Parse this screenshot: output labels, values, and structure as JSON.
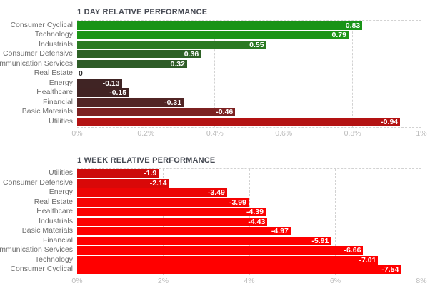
{
  "styles": {
    "background": "#ffffff",
    "title_color": "#474b54",
    "category_label_color": "#6e6e6e",
    "tick_label_color": "#bcbcbc",
    "grid_color": "#d2d2d2",
    "bar_value_label_color": "#ffffff",
    "zero_value_label_color": "#2e2e2e"
  },
  "chart_data": [
    {
      "type": "bar",
      "orientation": "horizontal",
      "title": "1 DAY RELATIVE PERFORMANCE",
      "categories": [
        "Consumer Cyclical",
        "Technology",
        "Industrials",
        "Consumer Defensive",
        "Communication Services",
        "Real Estate",
        "Energy",
        "Healthcare",
        "Financial",
        "Basic Materials",
        "Utilities"
      ],
      "values": [
        0.83,
        0.79,
        0.55,
        0.36,
        0.32,
        0,
        -0.13,
        -0.15,
        -0.31,
        -0.46,
        -0.94
      ],
      "value_labels": [
        "0.83",
        "0.79",
        "0.55",
        "0.36",
        "0.32",
        "0",
        "-0.13",
        "-0.15",
        "-0.31",
        "-0.46",
        "-0.94"
      ],
      "bar_colors": [
        "#199317",
        "#1c9516",
        "#2a7a22",
        "#2d6126",
        "#2e5c27",
        null,
        "#402424",
        "#412323",
        "#522525",
        "#7d2121",
        "#b31212"
      ],
      "bar_length_basis": "absolute value of performance percent",
      "axis": {
        "x_min": 0,
        "x_max": 1,
        "tick_positions_percent": [
          0,
          20,
          40,
          60,
          80,
          100
        ],
        "tick_labels": [
          "0%",
          "0.2%",
          "0.4%",
          "0.6%",
          "0.8%",
          "1%"
        ]
      },
      "grid": "dashed vertical gridlines; dashed top, right and bottom plot border",
      "legend": "none"
    },
    {
      "type": "bar",
      "orientation": "horizontal",
      "title": "1 WEEK RELATIVE PERFORMANCE",
      "categories": [
        "Utilities",
        "Consumer Defensive",
        "Energy",
        "Real Estate",
        "Healthcare",
        "Industrials",
        "Basic Materials",
        "Financial",
        "Communication Services",
        "Technology",
        "Consumer Cyclical"
      ],
      "values": [
        -1.9,
        -2.14,
        -3.49,
        -3.99,
        -4.39,
        -4.43,
        -4.97,
        -5.91,
        -6.66,
        -7.01,
        -7.54
      ],
      "value_labels": [
        "-1.9",
        "-2.14",
        "-3.49",
        "-3.99",
        "-4.39",
        "-4.43",
        "-4.97",
        "-5.91",
        "-6.66",
        "-7.01",
        "-7.54"
      ],
      "bar_colors": [
        "#cc0b0b",
        "#d90808",
        "#ec0505",
        "#f60303",
        "#fb0101",
        "#fc0101",
        "#fe0000",
        "#ff0000",
        "#ff0000",
        "#ff0000",
        "#ff0000"
      ],
      "bar_length_basis": "absolute value of performance percent",
      "axis": {
        "x_min": 0,
        "x_max": 8,
        "tick_positions_percent": [
          0,
          25,
          50,
          75,
          100
        ],
        "tick_labels": [
          "0%",
          "2%",
          "4%",
          "6%",
          "8%"
        ]
      },
      "grid": "dashed vertical gridlines; dashed top, right and bottom plot border",
      "legend": "none"
    }
  ]
}
